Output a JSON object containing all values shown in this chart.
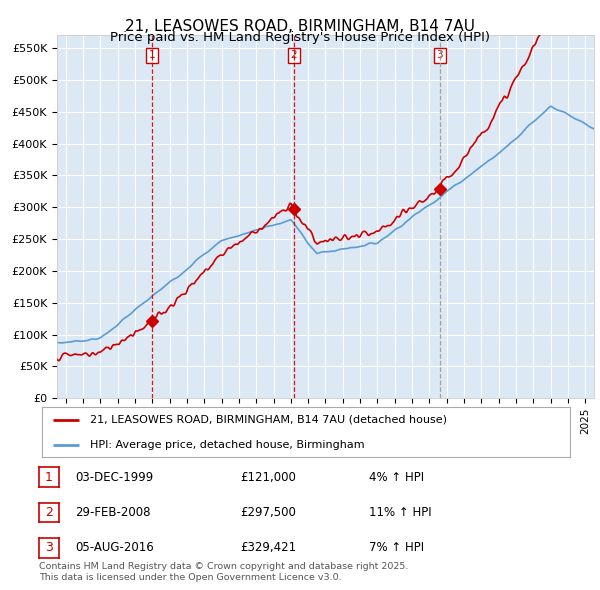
{
  "title": "21, LEASOWES ROAD, BIRMINGHAM, B14 7AU",
  "subtitle": "Price paid vs. HM Land Registry's House Price Index (HPI)",
  "ylabel_ticks": [
    "£0",
    "£50K",
    "£100K",
    "£150K",
    "£200K",
    "£250K",
    "£300K",
    "£350K",
    "£400K",
    "£450K",
    "£500K",
    "£550K"
  ],
  "ytick_values": [
    0,
    50000,
    100000,
    150000,
    200000,
    250000,
    300000,
    350000,
    400000,
    450000,
    500000,
    550000
  ],
  "ylim": [
    0,
    570000
  ],
  "xlim_start": 1994.5,
  "xlim_end": 2025.5,
  "sale_dates": [
    2000.0,
    2008.17,
    2016.59
  ],
  "sale_prices": [
    121000,
    297500,
    329421
  ],
  "sale_labels": [
    "1",
    "2",
    "3"
  ],
  "sale_line_colors": [
    "#cc0000",
    "#cc0000",
    "#999999"
  ],
  "hpi_line_color": "#5b9bd5",
  "price_line_color": "#cc0000",
  "sale_marker_color": "#cc0000",
  "chart_bg_color": "#dce9f5",
  "background_color": "#ffffff",
  "grid_color": "#ffffff",
  "legend_entries": [
    "21, LEASOWES ROAD, BIRMINGHAM, B14 7AU (detached house)",
    "HPI: Average price, detached house, Birmingham"
  ],
  "table_rows": [
    [
      "1",
      "03-DEC-1999",
      "£121,000",
      "4% ↑ HPI"
    ],
    [
      "2",
      "29-FEB-2008",
      "£297,500",
      "11% ↑ HPI"
    ],
    [
      "3",
      "05-AUG-2016",
      "£329,421",
      "7% ↑ HPI"
    ]
  ],
  "footer_text": "Contains HM Land Registry data © Crown copyright and database right 2025.\nThis data is licensed under the Open Government Licence v3.0.",
  "title_fontsize": 11,
  "subtitle_fontsize": 9.5,
  "tick_fontsize": 8.0
}
